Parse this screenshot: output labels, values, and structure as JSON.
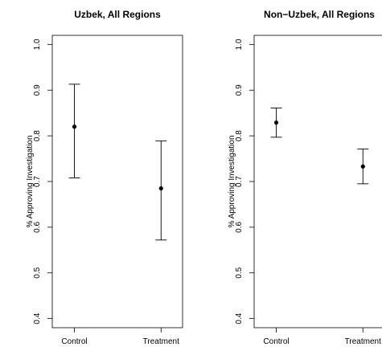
{
  "chart_data": [
    {
      "type": "errorbar",
      "title": "Uzbek, All Regions",
      "ylabel": "% Approving Investigation",
      "xlabel": "",
      "categories": [
        "Control",
        "Treatment"
      ],
      "values": [
        0.82,
        0.685
      ],
      "lower": [
        0.708,
        0.572
      ],
      "upper": [
        0.913,
        0.789
      ],
      "ylim": [
        0.38,
        1.02
      ],
      "yticks": [
        "0.4",
        "0.5",
        "0.6",
        "0.7",
        "0.8",
        "0.9",
        "1.0"
      ],
      "grid": false
    },
    {
      "type": "errorbar",
      "title": "Non−Uzbek, All Regions",
      "ylabel": "% Approving Investigation",
      "xlabel": "",
      "categories": [
        "Control",
        "Treatment"
      ],
      "values": [
        0.829,
        0.733
      ],
      "lower": [
        0.797,
        0.695
      ],
      "upper": [
        0.861,
        0.771
      ],
      "ylim": [
        0.38,
        1.02
      ],
      "yticks": [
        "0.4",
        "0.5",
        "0.6",
        "0.7",
        "0.8",
        "0.9",
        "1.0"
      ],
      "grid": false
    }
  ]
}
